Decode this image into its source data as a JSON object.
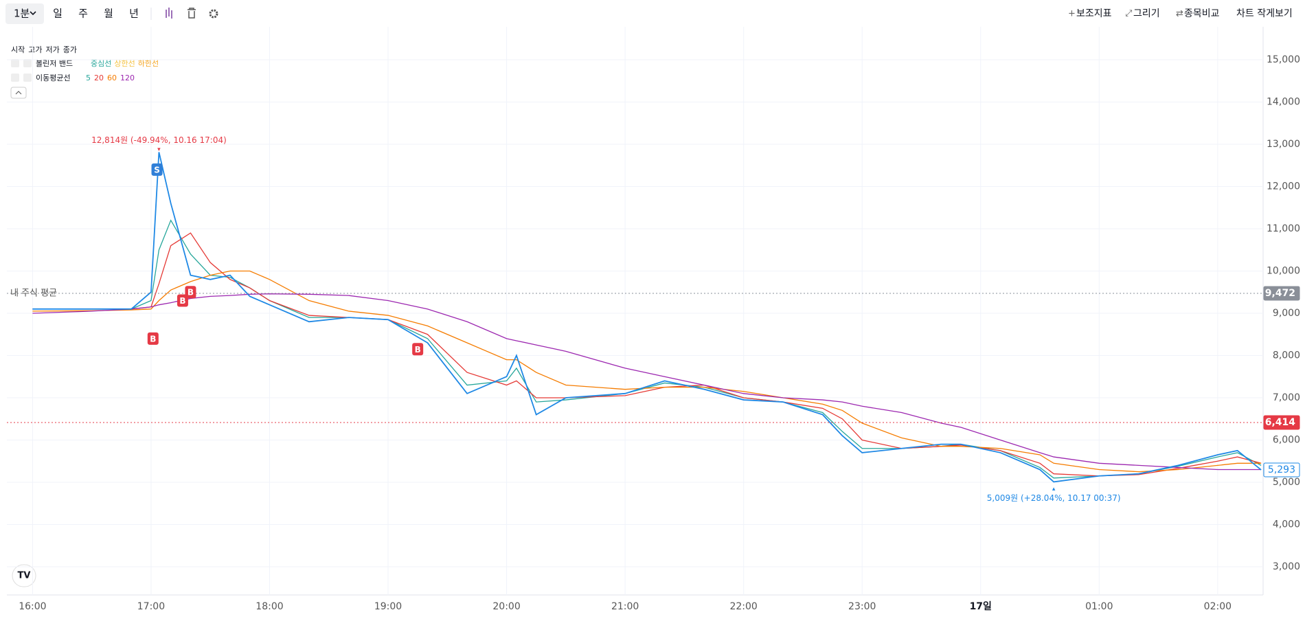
{
  "toolbar": {
    "interval": "1분",
    "periods": [
      "일",
      "주",
      "월",
      "년"
    ],
    "right": [
      "보조지표",
      "그리기",
      "종목비교",
      "차트 작게보기"
    ]
  },
  "legend": {
    "ohlc": [
      "시작",
      "고가",
      "저가",
      "종가"
    ],
    "bollinger": "볼린저 밴드",
    "bollinger_lines": [
      {
        "label": "중심선",
        "color": "#26a69a"
      },
      {
        "label": "상한선",
        "color": "#f5c342"
      },
      {
        "label": "하한선",
        "color": "#f5a623"
      }
    ],
    "ma_title": "이동평균선"
  },
  "chart_data": {
    "type": "line",
    "x": [
      "16:00",
      "16:30",
      "16:50",
      "17:00",
      "17:04",
      "17:10",
      "17:20",
      "17:30",
      "17:40",
      "17:50",
      "18:00",
      "18:20",
      "18:40",
      "19:00",
      "19:20",
      "19:40",
      "20:00",
      "20:05",
      "20:15",
      "20:30",
      "21:00",
      "21:20",
      "21:40",
      "22:00",
      "22:20",
      "22:40",
      "22:50",
      "23:00",
      "23:20",
      "23:40",
      "23:50",
      "00:10",
      "00:30",
      "00:37",
      "01:00",
      "01:20",
      "01:40",
      "02:00",
      "02:10",
      "02:22"
    ],
    "values": [
      9100,
      9100,
      9100,
      9500,
      12814,
      11600,
      9900,
      9800,
      9900,
      9400,
      9200,
      8800,
      8900,
      8850,
      8300,
      7100,
      7500,
      8000,
      6600,
      7000,
      7100,
      7400,
      7200,
      6950,
      6900,
      6600,
      6100,
      5700,
      5800,
      5900,
      5900,
      5700,
      5300,
      5009,
      5150,
      5200,
      5400,
      5650,
      5750,
      5293
    ],
    "color": "#1e88e5",
    "series": [
      {
        "name": "5",
        "color": "#26a69a",
        "values": [
          9100,
          9100,
          9100,
          9300,
          10500,
          11200,
          10400,
          9900,
          9850,
          9600,
          9300,
          8900,
          8900,
          8850,
          8400,
          7300,
          7400,
          7700,
          6900,
          6950,
          7100,
          7350,
          7250,
          7000,
          6900,
          6650,
          6200,
          5800,
          5800,
          5850,
          5900,
          5750,
          5350,
          5100,
          5150,
          5200,
          5380,
          5600,
          5700,
          5400
        ]
      },
      {
        "name": "20",
        "color": "#e53935",
        "values": [
          9100,
          9100,
          9100,
          9150,
          9700,
          10600,
          10900,
          10200,
          9800,
          9600,
          9300,
          8950,
          8900,
          8850,
          8500,
          7600,
          7300,
          7400,
          7000,
          7000,
          7050,
          7250,
          7300,
          7000,
          6900,
          6750,
          6500,
          6000,
          5800,
          5850,
          5880,
          5750,
          5450,
          5200,
          5150,
          5180,
          5330,
          5500,
          5600,
          5450
        ]
      },
      {
        "name": "60",
        "color": "#f57c00",
        "values": [
          9050,
          9060,
          9080,
          9100,
          9300,
          9550,
          9750,
          9900,
          10000,
          10000,
          9800,
          9300,
          9050,
          8950,
          8700,
          8300,
          7900,
          7900,
          7600,
          7300,
          7200,
          7250,
          7250,
          7150,
          7000,
          6850,
          6700,
          6400,
          6050,
          5850,
          5850,
          5800,
          5650,
          5450,
          5300,
          5250,
          5300,
          5400,
          5450,
          5450
        ]
      },
      {
        "name": "120",
        "color": "#9c27b0",
        "values": [
          9000,
          9050,
          9100,
          9150,
          9200,
          9250,
          9350,
          9400,
          9420,
          9450,
          9460,
          9450,
          9420,
          9300,
          9100,
          8800,
          8400,
          8350,
          8250,
          8100,
          7700,
          7500,
          7300,
          7100,
          7000,
          6950,
          6900,
          6800,
          6650,
          6400,
          6300,
          6000,
          5700,
          5600,
          5450,
          5400,
          5350,
          5300,
          5300,
          5300
        ]
      }
    ],
    "xlim": [
      "15:47",
      "02:23"
    ],
    "xticks": [
      "16:00",
      "17:00",
      "18:00",
      "19:00",
      "20:00",
      "21:00",
      "22:00",
      "23:00",
      {
        "value": "00:00",
        "label": "17일"
      },
      "01:00",
      "02:00"
    ],
    "ylim": [
      2333,
      15780
    ],
    "yticks": [
      {
        "value": 3000,
        "label": "3,000"
      },
      {
        "value": 4000,
        "label": "4,000"
      },
      {
        "value": 5000,
        "label": "5,000"
      },
      {
        "value": 6000,
        "label": "6,000"
      },
      {
        "value": 7000,
        "label": "7,000"
      },
      {
        "value": 8000,
        "label": "8,000"
      },
      {
        "value": 9000,
        "label": "9,000"
      },
      {
        "value": 10000,
        "label": "10,000"
      },
      {
        "value": 11000,
        "label": "11,000"
      },
      {
        "value": 12000,
        "label": "12,000"
      },
      {
        "value": 13000,
        "label": "13,000"
      },
      {
        "value": 14000,
        "label": "14,000"
      },
      {
        "value": 15000,
        "label": "15,000"
      }
    ],
    "grid": true,
    "avg_line": {
      "label": "내 주식 평균",
      "value": 9472,
      "value_label": "9,472",
      "color": "#8a8f98"
    },
    "current_line": {
      "value": 6414,
      "value_label": "6,414",
      "color": "#e53945"
    },
    "last_price": {
      "value": 5293,
      "value_label": "5,293",
      "color": "#1e88e5"
    },
    "annotations": [
      {
        "text": "12,814원 (-49.94%, 10.16 17:04)",
        "time": "17:04",
        "price": 12814,
        "color": "#e53945",
        "pos": "above"
      },
      {
        "text": "5,009원 (+28.04%, 10.17 00:37)",
        "time": "00:37",
        "price": 5009,
        "color": "#1e88e5",
        "pos": "below"
      }
    ],
    "trades": [
      {
        "label": "S",
        "time": "17:03",
        "price": 12400,
        "color": "#2f7fd8"
      },
      {
        "label": "B",
        "time": "17:01",
        "price": 8400,
        "color": "#e53945"
      },
      {
        "label": "B",
        "time": "17:16",
        "price": 9300,
        "color": "#e53945"
      },
      {
        "label": "B",
        "time": "17:20",
        "price": 9500,
        "color": "#e53945"
      },
      {
        "label": "B",
        "time": "19:15",
        "price": 8150,
        "color": "#e53945"
      }
    ]
  }
}
